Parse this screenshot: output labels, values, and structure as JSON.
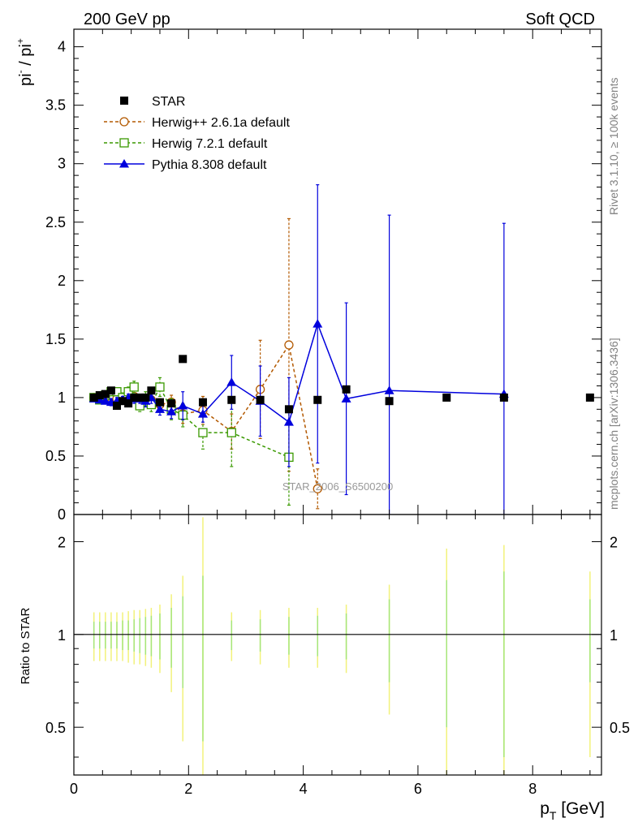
{
  "header": {
    "left_label": "200 GeV pp",
    "right_label": "Soft QCD"
  },
  "side_labels": {
    "rivet": "Rivet 3.1.10, ≥ 100k events",
    "mcplots": "mcplots.cern.ch [arXiv:1306.3436]"
  },
  "watermark": "STAR_2006_S6500200",
  "colors": {
    "star": "#000000",
    "herwigpp": "#b35900",
    "herwig7": "#3a9900",
    "pythia": "#0000dd",
    "ratio_band_light": "#f2f27a",
    "ratio_band_green": "#a6e67a"
  },
  "chart_data": [
    {
      "type": "scatter",
      "title": "",
      "ylabel_base": "pi",
      "ylabel_num_sup": "-",
      "ylabel_den_sup": "+",
      "xlim": [
        0,
        9.2
      ],
      "ylim": [
        0,
        4.15
      ],
      "yticks": [
        "0",
        "0.5",
        "1",
        "1.5",
        "2",
        "2.5",
        "3",
        "3.5",
        "4"
      ],
      "legend": [
        "STAR",
        "Herwig++ 2.6.1a default",
        "Herwig 7.2.1 default",
        "Pythia 8.308 default"
      ],
      "series": [
        {
          "name": "STAR",
          "marker": "square-filled",
          "x": [
            0.35,
            0.45,
            0.55,
            0.65,
            0.75,
            0.85,
            0.95,
            1.05,
            1.15,
            1.25,
            1.35,
            1.5,
            1.7,
            1.9,
            2.25,
            2.75,
            3.25,
            3.75,
            4.25,
            4.75,
            5.5,
            6.5,
            7.5,
            9.0
          ],
          "y": [
            1.0,
            1.02,
            1.03,
            1.06,
            0.93,
            0.97,
            0.95,
            1.0,
            1.0,
            1.0,
            1.06,
            0.96,
            0.95,
            1.33,
            0.96,
            0.98,
            0.98,
            0.9,
            0.98,
            1.07,
            0.97,
            1.0,
            1.0,
            1.0
          ]
        },
        {
          "name": "Herwig++ 2.6.1a default",
          "marker": "circle-open",
          "x": [
            0.35,
            0.45,
            0.55,
            0.65,
            0.75,
            0.85,
            0.95,
            1.05,
            1.15,
            1.25,
            1.35,
            1.5,
            1.7,
            1.9,
            2.25,
            2.75,
            3.25,
            3.75,
            4.25
          ],
          "y": [
            1.0,
            1.01,
            1.0,
            1.02,
            0.99,
            0.98,
            1.0,
            1.01,
            0.97,
            0.99,
            0.98,
            0.94,
            0.96,
            0.86,
            0.89,
            0.71,
            1.07,
            1.45,
            0.22
          ],
          "yerr": [
            0.02,
            0.02,
            0.02,
            0.02,
            0.02,
            0.03,
            0.03,
            0.03,
            0.04,
            0.04,
            0.05,
            0.05,
            0.06,
            0.08,
            0.12,
            0.15,
            0.42,
            1.08,
            0.17
          ]
        },
        {
          "name": "Herwig 7.2.1 default",
          "marker": "square-open",
          "x": [
            0.35,
            0.45,
            0.55,
            0.65,
            0.75,
            0.85,
            0.95,
            1.05,
            1.15,
            1.25,
            1.35,
            1.5,
            1.7,
            1.9,
            2.25,
            2.75,
            3.75
          ],
          "y": [
            1.0,
            0.98,
            1.02,
            1.05,
            1.05,
            1.0,
            1.05,
            1.09,
            0.93,
            0.99,
            0.94,
            1.09,
            0.9,
            0.85,
            0.7,
            0.7,
            0.49
          ],
          "yerr": [
            0.02,
            0.02,
            0.03,
            0.03,
            0.03,
            0.04,
            0.04,
            0.05,
            0.05,
            0.06,
            0.06,
            0.08,
            0.09,
            0.1,
            0.14,
            0.29,
            0.41
          ]
        },
        {
          "name": "Pythia 8.308 default",
          "marker": "triangle-filled",
          "x": [
            0.35,
            0.45,
            0.55,
            0.65,
            0.75,
            0.85,
            0.95,
            1.05,
            1.15,
            1.25,
            1.35,
            1.5,
            1.7,
            1.9,
            2.25,
            2.75,
            3.25,
            3.75,
            4.25,
            4.75,
            5.5,
            7.5
          ],
          "y": [
            0.99,
            0.98,
            0.97,
            0.96,
            0.97,
            0.98,
            1.0,
            0.99,
            0.99,
            0.97,
            1.0,
            0.9,
            0.88,
            0.93,
            0.86,
            1.13,
            0.97,
            0.79,
            1.63,
            0.99,
            1.06,
            1.03
          ],
          "yerr": [
            0.02,
            0.02,
            0.02,
            0.03,
            0.03,
            0.03,
            0.03,
            0.04,
            0.04,
            0.05,
            0.05,
            0.05,
            0.06,
            0.12,
            0.07,
            0.23,
            0.3,
            0.38,
            1.19,
            0.82,
            1.5,
            1.46
          ]
        }
      ]
    },
    {
      "type": "scatter",
      "ylabel": "Ratio to STAR",
      "xlabel": "p",
      "xlabel_sub": "T",
      "xlabel_unit": "[GeV]",
      "xlim": [
        0,
        9.2
      ],
      "ylim": [
        0.35,
        2.45
      ],
      "scale": "log",
      "xticks": [
        "0",
        "2",
        "4",
        "6",
        "8"
      ],
      "yticks": [
        "0.5",
        "1",
        "2"
      ],
      "reference_line": 1,
      "band_x": [
        0.35,
        0.45,
        0.55,
        0.65,
        0.75,
        0.85,
        0.95,
        1.05,
        1.15,
        1.25,
        1.35,
        1.5,
        1.7,
        1.9,
        2.25,
        2.75,
        3.25,
        3.75,
        4.25,
        4.75,
        5.5,
        6.5,
        7.5,
        9.0
      ],
      "band_stat": [
        0.1,
        0.1,
        0.1,
        0.1,
        0.1,
        0.11,
        0.11,
        0.12,
        0.13,
        0.14,
        0.15,
        0.17,
        0.22,
        0.33,
        0.55,
        0.11,
        0.12,
        0.14,
        0.15,
        0.17,
        0.3,
        0.5,
        0.6,
        0.3
      ],
      "band_total": [
        0.18,
        0.18,
        0.18,
        0.18,
        0.18,
        0.18,
        0.19,
        0.2,
        0.2,
        0.21,
        0.22,
        0.25,
        0.35,
        0.55,
        1.4,
        0.18,
        0.2,
        0.22,
        0.22,
        0.25,
        0.45,
        0.9,
        0.95,
        0.6
      ]
    }
  ]
}
